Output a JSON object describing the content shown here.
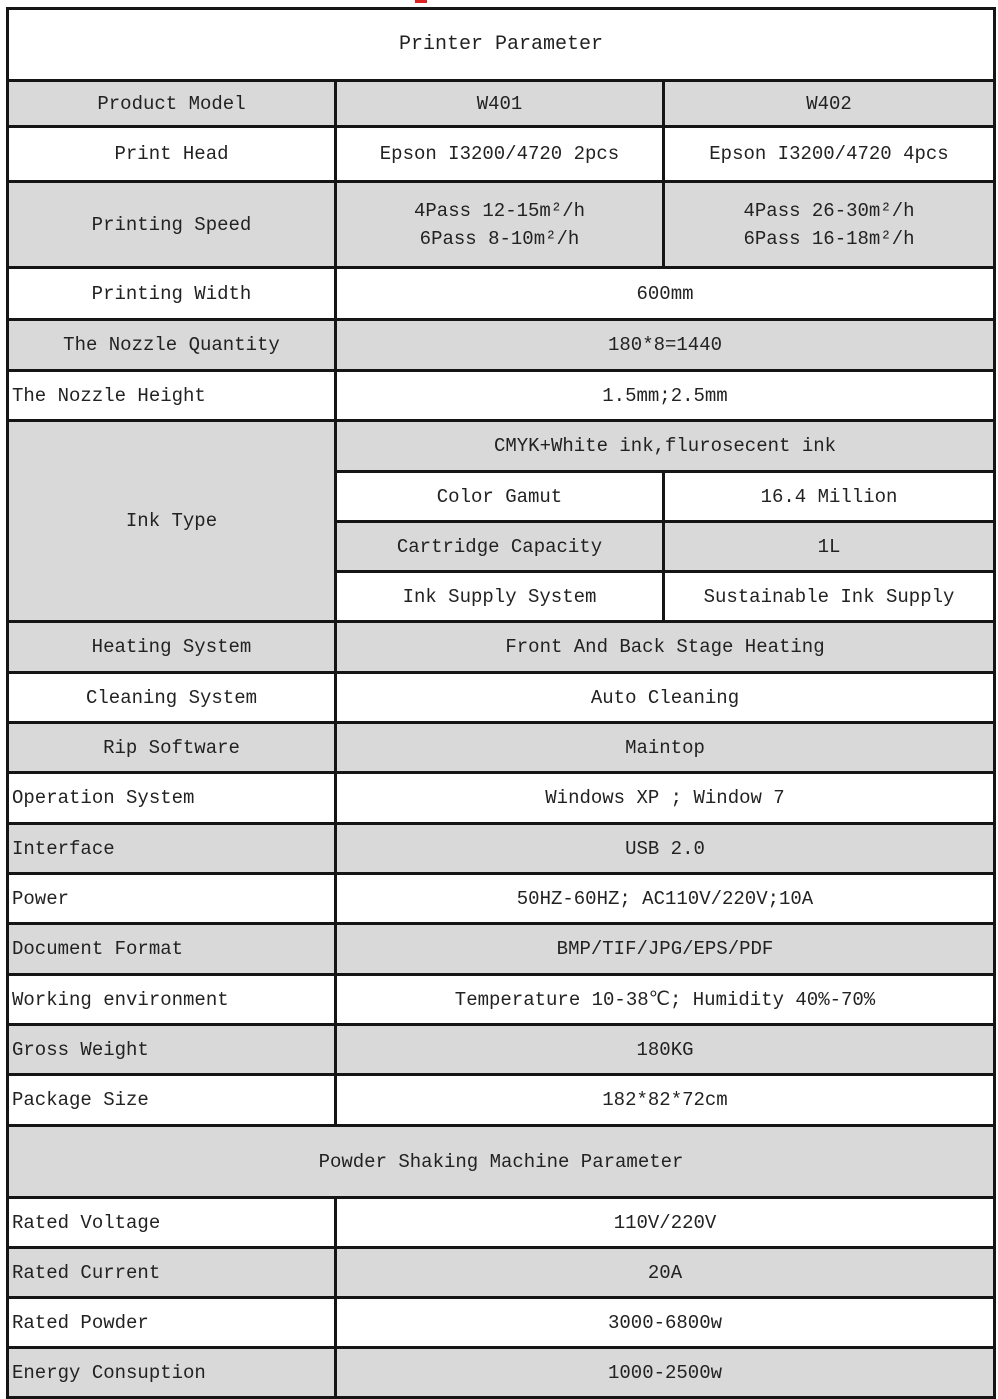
{
  "title": "Printer Parameter",
  "header": {
    "label": "Product Model",
    "models": [
      "W401",
      "W402"
    ]
  },
  "print_head": {
    "label": "Print Head",
    "values": [
      "Epson I3200/4720 2pcs",
      "Epson I3200/4720 4pcs"
    ]
  },
  "printing_speed": {
    "label": "Printing Speed",
    "w401": [
      "4Pass 12-15m²/h",
      "6Pass 8-10m²/h"
    ],
    "w402": [
      "4Pass 26-30m²/h",
      "6Pass 16-18m²/h"
    ]
  },
  "rows_a": [
    {
      "label": "Printing Width",
      "value": "600mm"
    },
    {
      "label": "The Nozzle Quantity",
      "value": "180*8=1440"
    },
    {
      "label": "The Nozzle Height",
      "value": "1.5mm;2.5mm"
    }
  ],
  "ink": {
    "label": "Ink Type",
    "types": "CMYK+White ink,flurosecent ink",
    "sub": [
      {
        "label": "Color Gamut",
        "value": "16.4 Million"
      },
      {
        "label": "Cartridge Capacity",
        "value": "1L"
      },
      {
        "label": "Ink Supply System",
        "value": "Sustainable Ink Supply"
      }
    ]
  },
  "rows_b": [
    {
      "label": "Heating System",
      "value": "Front And Back Stage Heating"
    },
    {
      "label": "Cleaning System",
      "value": "Auto Cleaning"
    },
    {
      "label": "Rip Software",
      "value": "Maintop"
    },
    {
      "label": "Operation System",
      "value": "Windows XP ; Window 7"
    },
    {
      "label": "Interface",
      "value": "USB 2.0"
    },
    {
      "label": "Power",
      "value": "50HZ-60HZ; AC110V/220V;10A"
    },
    {
      "label": "Document Format",
      "value": "BMP/TIF/JPG/EPS/PDF"
    },
    {
      "label": "Working environment",
      "value": "Temperature 10-38℃; Humidity 40%-70%"
    },
    {
      "label": "Gross Weight",
      "value": "180KG"
    },
    {
      "label": "Package Size",
      "value": "182*82*72cm"
    }
  ],
  "powder_title": "Powder Shaking Machine Parameter",
  "rows_c": [
    {
      "label": "Rated Voltage",
      "value": "110V/220V"
    },
    {
      "label": "Rated Current",
      "value": "20A"
    },
    {
      "label": "Rated Powder",
      "value": "3000-6800w"
    },
    {
      "label": "Energy Consuption",
      "value": "1000-2500w"
    }
  ],
  "colors": {
    "shaded": "#d9d9d9",
    "border": "#151515",
    "mark": "#dd2222"
  }
}
